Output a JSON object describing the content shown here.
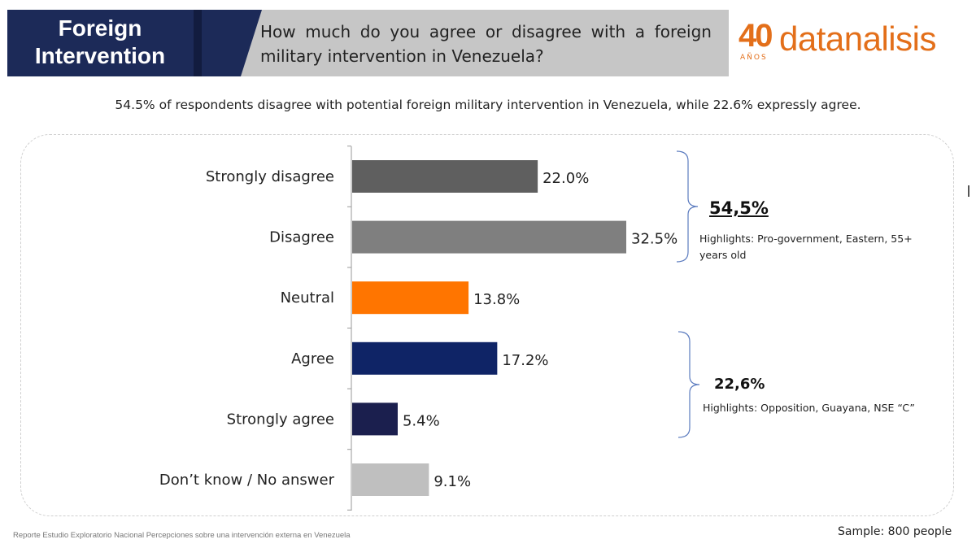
{
  "header": {
    "section_title_line1": "Foreign",
    "section_title_line2": "Intervention",
    "question": "How much do you agree or disagree with a foreign military intervention in Venezuela?",
    "logo": {
      "number": "40",
      "anos": "AÑOS",
      "name": "datanalisis",
      "color": "#e36f1a"
    }
  },
  "subtitle": "54.5% of respondents disagree with potential foreign military intervention in Venezuela, while 22.6% expressly agree.",
  "chart_data": {
    "type": "bar",
    "orientation": "horizontal",
    "categories": [
      "Strongly disagree",
      "Disagree",
      "Neutral",
      "Agree",
      "Strongly agree",
      "Don’t know / No answer"
    ],
    "values": [
      22.0,
      32.5,
      13.8,
      17.2,
      5.4,
      9.1
    ],
    "value_labels": [
      "22.0%",
      "32.5%",
      "13.8%",
      "17.2%",
      "5.4%",
      "9.1%"
    ],
    "colors": [
      "#5f5f5f",
      "#7f7f7f",
      "#ff7500",
      "#0f2466",
      "#1b1f4e",
      "#bfbfbf"
    ],
    "xlim": [
      0,
      35
    ],
    "grid": false,
    "groups": [
      {
        "categories": [
          "Strongly disagree",
          "Disagree"
        ],
        "total": "54,5%",
        "note": "Highlights: Pro-government, Eastern, 55+ years old"
      },
      {
        "categories": [
          "Agree",
          "Strongly agree"
        ],
        "total": "22,6%",
        "note": "Highlights: Opposition, Guayana, NSE “C”"
      }
    ]
  },
  "footer": {
    "source": "Reporte Estudio Exploratorio Nacional Percepciones sobre una intervención externa en Venezuela",
    "sample": "Sample: 800 people"
  }
}
